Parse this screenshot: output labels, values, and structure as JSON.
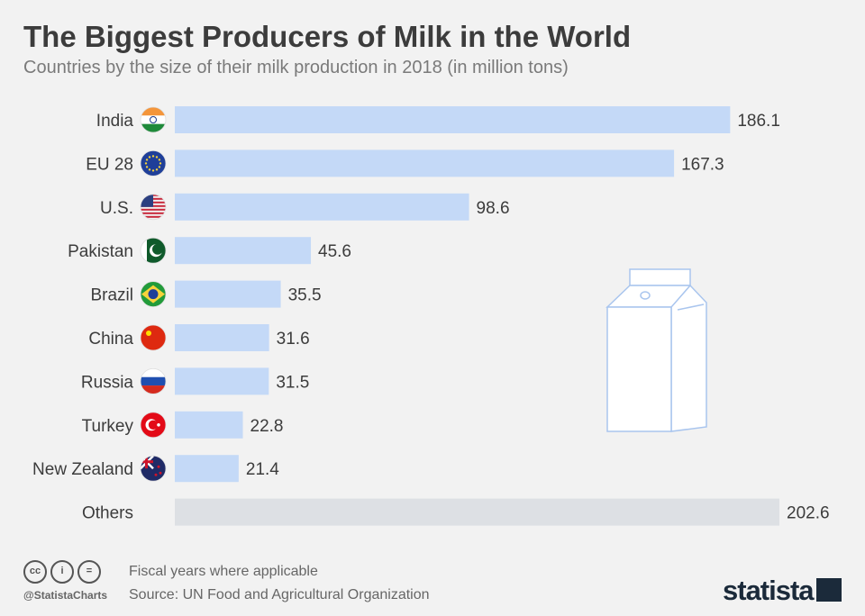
{
  "header": {
    "title": "The Biggest Producers of Milk in the World",
    "subtitle": "Countries by the size of their milk production in 2018 (in million tons)"
  },
  "chart_data": {
    "type": "bar",
    "orientation": "horizontal",
    "title": "The Biggest Producers of Milk in the World",
    "subtitle": "Countries by the size of their milk production in 2018 (in million tons)",
    "categories": [
      "India",
      "EU 28",
      "U.S.",
      "Pakistan",
      "Brazil",
      "China",
      "Russia",
      "Turkey",
      "New Zealand",
      "Others"
    ],
    "values": [
      186.1,
      167.3,
      98.6,
      45.6,
      35.5,
      31.6,
      31.5,
      22.8,
      21.4,
      202.6
    ],
    "value_labels": [
      "186.1",
      "167.3",
      "98.6",
      "45.6",
      "35.5",
      "31.6",
      "31.5",
      "22.8",
      "21.4",
      "202.6"
    ],
    "flags": [
      "india-flag-icon",
      "eu-flag-icon",
      "usa-flag-icon",
      "pakistan-flag-icon",
      "brazil-flag-icon",
      "china-flag-icon",
      "russia-flag-icon",
      "turkey-flag-icon",
      "new-zealand-flag-icon",
      null
    ],
    "bar_colors": [
      "#c4d9f7",
      "#c4d9f7",
      "#c4d9f7",
      "#c4d9f7",
      "#c4d9f7",
      "#c4d9f7",
      "#c4d9f7",
      "#c4d9f7",
      "#c4d9f7",
      "#dde0e4"
    ],
    "xlim": [
      0,
      202.6
    ],
    "grid": false,
    "legend": "none",
    "decoration": "milk-carton-icon"
  },
  "footer": {
    "license_icons": [
      "cc-icon",
      "by-icon",
      "nd-icon"
    ],
    "handle": "@StatistaCharts",
    "note": "Fiscal years where applicable",
    "source": "Source: UN Food and Agricultural Organization",
    "brand": "statista"
  },
  "colors": {
    "bar": "#c4d9f7",
    "bar_other": "#dde0e4",
    "background": "#f2f2f2",
    "title": "#3c3c3c",
    "brand": "#1b2a3a"
  }
}
